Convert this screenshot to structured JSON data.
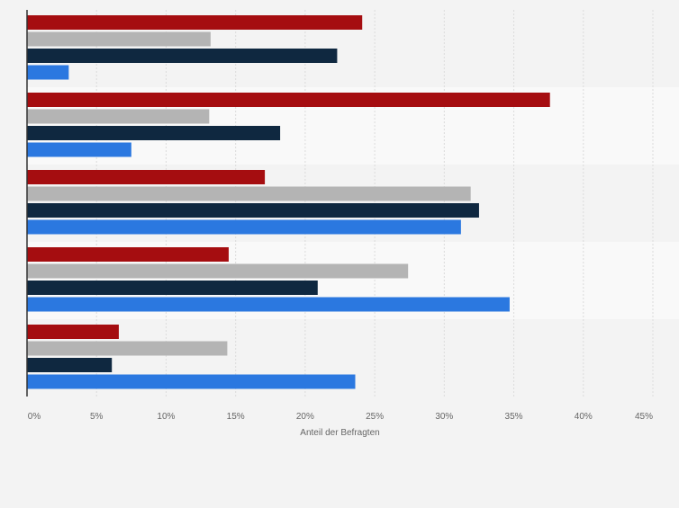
{
  "chart_data": {
    "type": "bar",
    "orientation": "horizontal",
    "categories": [
      "",
      "",
      "",
      "",
      ""
    ],
    "series": [
      {
        "values": [
          24.1,
          37.6,
          17.1,
          14.5,
          6.6
        ],
        "color": "#a50d10"
      },
      {
        "values": [
          13.2,
          13.1,
          31.9,
          27.4,
          14.4
        ],
        "color": "#b4b4b4"
      },
      {
        "values": [
          22.3,
          18.2,
          32.5,
          20.9,
          6.1
        ],
        "color": "#0f2840"
      },
      {
        "values": [
          3.0,
          7.5,
          31.2,
          34.7,
          23.6
        ],
        "color": "#2b78e0"
      }
    ],
    "xlabel": "Anteil der Befragten",
    "xlim": [
      0,
      45
    ],
    "x_ticks": [
      "0%",
      "5%",
      "10%",
      "15%",
      "20%",
      "25%",
      "30%",
      "35%",
      "40%",
      "45%"
    ],
    "grid": true,
    "band_colors": [
      "#f3f3f3",
      "#f9f9f9"
    ],
    "gridline_color": "#dcdcdc",
    "axis_color": "#333333",
    "tick_color": "#666666"
  }
}
